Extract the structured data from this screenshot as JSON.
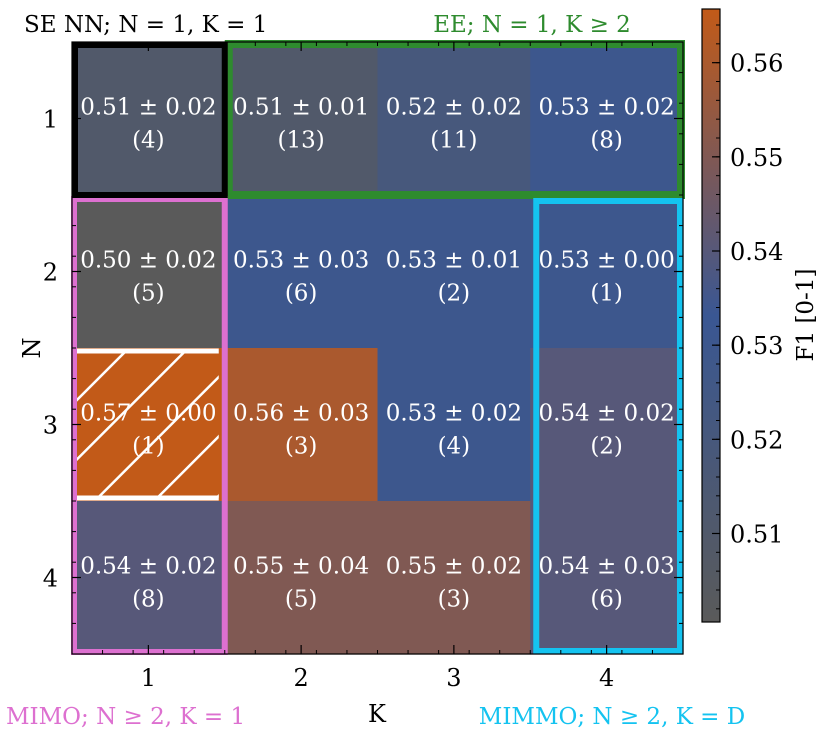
{
  "chart_data": {
    "type": "heatmap",
    "xlabel": "K",
    "ylabel": "N",
    "x_categories": [
      "1",
      "2",
      "3",
      "4"
    ],
    "y_categories": [
      "1",
      "2",
      "3",
      "4"
    ],
    "cells": [
      {
        "n": 1,
        "k": 1,
        "mean": 0.51,
        "std": 0.02,
        "count": 4,
        "mean_text": "0.51 ± 0.02",
        "count_text": "(4)"
      },
      {
        "n": 1,
        "k": 2,
        "mean": 0.51,
        "std": 0.01,
        "count": 13,
        "mean_text": "0.51 ± 0.01",
        "count_text": "(13)"
      },
      {
        "n": 1,
        "k": 3,
        "mean": 0.52,
        "std": 0.02,
        "count": 11,
        "mean_text": "0.52 ± 0.02",
        "count_text": "(11)"
      },
      {
        "n": 1,
        "k": 4,
        "mean": 0.53,
        "std": 0.02,
        "count": 8,
        "mean_text": "0.53 ± 0.02",
        "count_text": "(8)"
      },
      {
        "n": 2,
        "k": 1,
        "mean": 0.5,
        "std": 0.02,
        "count": 5,
        "mean_text": "0.50 ± 0.02",
        "count_text": "(5)"
      },
      {
        "n": 2,
        "k": 2,
        "mean": 0.53,
        "std": 0.03,
        "count": 6,
        "mean_text": "0.53 ± 0.03",
        "count_text": "(6)"
      },
      {
        "n": 2,
        "k": 3,
        "mean": 0.53,
        "std": 0.01,
        "count": 2,
        "mean_text": "0.53 ± 0.01",
        "count_text": "(2)"
      },
      {
        "n": 2,
        "k": 4,
        "mean": 0.53,
        "std": 0.0,
        "count": 1,
        "mean_text": "0.53 ± 0.00",
        "count_text": "(1)"
      },
      {
        "n": 3,
        "k": 1,
        "mean": 0.57,
        "std": 0.0,
        "count": 1,
        "mean_text": "0.57 ± 0.00",
        "count_text": "(1)"
      },
      {
        "n": 3,
        "k": 2,
        "mean": 0.56,
        "std": 0.03,
        "count": 3,
        "mean_text": "0.56 ± 0.03",
        "count_text": "(3)"
      },
      {
        "n": 3,
        "k": 3,
        "mean": 0.53,
        "std": 0.02,
        "count": 4,
        "mean_text": "0.53 ± 0.02",
        "count_text": "(4)"
      },
      {
        "n": 3,
        "k": 4,
        "mean": 0.54,
        "std": 0.02,
        "count": 2,
        "mean_text": "0.54 ± 0.02",
        "count_text": "(2)"
      },
      {
        "n": 4,
        "k": 1,
        "mean": 0.54,
        "std": 0.02,
        "count": 8,
        "mean_text": "0.54 ± 0.02",
        "count_text": "(8)"
      },
      {
        "n": 4,
        "k": 2,
        "mean": 0.55,
        "std": 0.04,
        "count": 5,
        "mean_text": "0.55 ± 0.04",
        "count_text": "(5)"
      },
      {
        "n": 4,
        "k": 3,
        "mean": 0.55,
        "std": 0.02,
        "count": 3,
        "mean_text": "0.55 ± 0.02",
        "count_text": "(3)"
      },
      {
        "n": 4,
        "k": 4,
        "mean": 0.54,
        "std": 0.03,
        "count": 6,
        "mean_text": "0.54 ± 0.03",
        "count_text": "(6)"
      }
    ],
    "colorbar": {
      "label": "F1 [0-1]",
      "range": [
        0.5006,
        0.5657
      ],
      "ticks": [
        0.51,
        0.52,
        0.53,
        0.54,
        0.55,
        0.56
      ],
      "tick_labels": [
        "0.51",
        "0.52",
        "0.53",
        "0.54",
        "0.55",
        "0.56"
      ],
      "colormap": [
        "#5a5a5a",
        "#3a5793",
        "#c25a18"
      ]
    },
    "regions": [
      {
        "label": "SE NN; N = 1, K = 1",
        "color": "#000000",
        "n_range": [
          1,
          1
        ],
        "k_range": [
          1,
          1
        ]
      },
      {
        "label": "EE; N = 1, K ≥ 2",
        "color": "#2e8b2e",
        "n_range": [
          1,
          1
        ],
        "k_range": [
          2,
          4
        ]
      },
      {
        "label": "MIMO; N ≥ 2, K = 1",
        "color": "#dd70d0",
        "n_range": [
          2,
          4
        ],
        "k_range": [
          1,
          1
        ]
      },
      {
        "label": "MIMMO; N ≥ 2, K = D",
        "color": "#14c3f0",
        "n_range": [
          2,
          4
        ],
        "k_range": [
          4,
          4
        ]
      }
    ],
    "highlight": {
      "n": 3,
      "k": 1,
      "pattern": "hatched",
      "color": "#ffffff"
    },
    "grid": false
  }
}
